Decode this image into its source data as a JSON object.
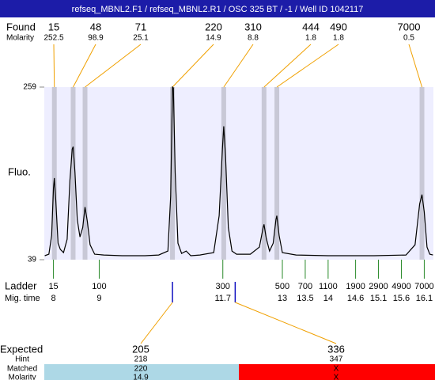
{
  "header": {
    "title": "refseq_MBNL2.F1 / refseq_MBNL2.R1 / OSC 325 BT / -1 / Well ID 1042117"
  },
  "found": {
    "label": "Found",
    "molarity_label": "Molarity",
    "peaks": [
      {
        "size": 15,
        "molarity": 252.5,
        "time": 8.02
      },
      {
        "size": 48,
        "molarity": 98.9,
        "time": 8.43
      },
      {
        "size": 71,
        "molarity": 25.1,
        "time": 8.69
      },
      {
        "size": 220,
        "molarity": 14.9,
        "time": 10.6
      },
      {
        "size": 310,
        "molarity": 8.8,
        "time": 11.72
      },
      {
        "size": 444,
        "molarity": 1.8,
        "time": 12.6
      },
      {
        "size": 490,
        "molarity": 1.8,
        "time": 12.88
      },
      {
        "size": 7000,
        "molarity": 0.5,
        "time": 16.05
      }
    ]
  },
  "plot": {
    "y_label": "Fluo.",
    "ylim": [
      39,
      259
    ],
    "yticks": [
      39,
      259
    ],
    "xlim": [
      7.8,
      16.3
    ],
    "trace": {
      "x": [
        7.81,
        7.9,
        7.96,
        8.0,
        8.02,
        8.05,
        8.1,
        8.15,
        8.22,
        8.3,
        8.36,
        8.41,
        8.43,
        8.47,
        8.52,
        8.58,
        8.64,
        8.69,
        8.74,
        8.8,
        8.9,
        9.1,
        9.5,
        10.0,
        10.3,
        10.5,
        10.56,
        10.6,
        10.62,
        10.66,
        10.72,
        10.8,
        10.9,
        11.0,
        11.2,
        11.5,
        11.62,
        11.69,
        11.72,
        11.76,
        11.82,
        11.9,
        12.0,
        12.3,
        12.5,
        12.58,
        12.6,
        12.65,
        12.72,
        12.8,
        12.86,
        12.88,
        12.93,
        13.0,
        13.3,
        14.0,
        15.0,
        15.7,
        15.9,
        16.0,
        16.05,
        16.1,
        16.16,
        16.22,
        16.29
      ],
      "values": [
        44,
        46,
        70,
        130,
        143,
        115,
        60,
        52,
        48,
        65,
        140,
        180,
        183,
        150,
        90,
        68,
        80,
        106,
        88,
        58,
        46,
        45,
        44,
        44,
        45,
        50,
        120,
        259,
        258,
        150,
        60,
        47,
        50,
        44,
        45,
        48,
        95,
        180,
        209,
        170,
        80,
        50,
        46,
        46,
        55,
        80,
        84,
        66,
        50,
        60,
        90,
        95,
        70,
        48,
        45,
        44,
        44,
        45,
        58,
        110,
        122,
        100,
        55,
        46,
        45
      ]
    }
  },
  "ladder": {
    "label": "Ladder",
    "time_label": "Mig. time",
    "peaks": [
      {
        "size": 15,
        "time": 8
      },
      {
        "size": 100,
        "time": 9
      },
      {
        "size": 300,
        "time": 11.7
      },
      {
        "size": 500,
        "time": 13
      },
      {
        "size": 700,
        "time": 13.5
      },
      {
        "size": 1100,
        "time": 14
      },
      {
        "size": 1900,
        "time": 14.6
      },
      {
        "size": 2900,
        "time": 15.1
      },
      {
        "size": 4900,
        "time": 15.6
      },
      {
        "size": 7000,
        "time": 16.1
      }
    ]
  },
  "expected": {
    "label": "Expected",
    "hint_label": "Hint",
    "matched_label": "Matched",
    "molarity_label": "Molarity",
    "items": [
      {
        "size": 205,
        "hint": 218,
        "matched": 220,
        "molarity": 14.9,
        "time": 10.6,
        "color": "#add8e6"
      },
      {
        "size": 336,
        "hint": 347,
        "matched": "X",
        "molarity": "X",
        "time": 11.97,
        "color": "#ff0000"
      }
    ]
  }
}
